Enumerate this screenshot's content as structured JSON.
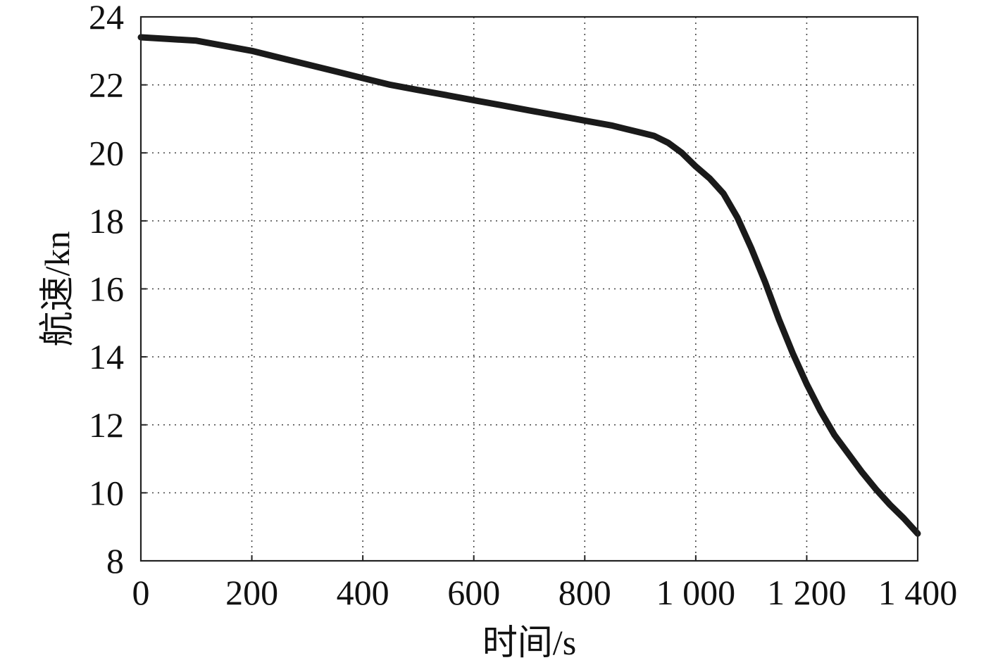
{
  "chart_data": {
    "type": "line",
    "title": "",
    "xlabel": "时间/s",
    "ylabel": "航速/kn",
    "xlim": [
      0,
      1400
    ],
    "ylim": [
      8,
      24
    ],
    "x_ticks": [
      0,
      200,
      400,
      600,
      800,
      1000,
      1200,
      1400
    ],
    "x_tick_labels": [
      "0",
      "200",
      "400",
      "600",
      "800",
      "1 000",
      "1 200",
      "1 400"
    ],
    "y_ticks": [
      8,
      10,
      12,
      14,
      16,
      18,
      20,
      22,
      24
    ],
    "y_tick_labels": [
      "8",
      "10",
      "12",
      "14",
      "16",
      "18",
      "20",
      "22",
      "24"
    ],
    "grid": true,
    "series": [
      {
        "color": "#1a1a1a",
        "x": [
          0,
          50,
          100,
          150,
          200,
          250,
          300,
          350,
          400,
          450,
          500,
          550,
          600,
          650,
          700,
          750,
          800,
          850,
          900,
          925,
          950,
          975,
          1000,
          1025,
          1050,
          1075,
          1100,
          1125,
          1150,
          1175,
          1200,
          1225,
          1250,
          1275,
          1300,
          1325,
          1350,
          1375,
          1400
        ],
        "y": [
          23.4,
          23.35,
          23.3,
          23.15,
          23.0,
          22.8,
          22.6,
          22.4,
          22.2,
          22.0,
          21.85,
          21.7,
          21.55,
          21.4,
          21.25,
          21.1,
          20.95,
          20.8,
          20.6,
          20.5,
          20.3,
          20.0,
          19.6,
          19.25,
          18.8,
          18.1,
          17.2,
          16.2,
          15.1,
          14.1,
          13.2,
          12.4,
          11.7,
          11.15,
          10.6,
          10.1,
          9.65,
          9.25,
          8.8
        ]
      }
    ]
  }
}
